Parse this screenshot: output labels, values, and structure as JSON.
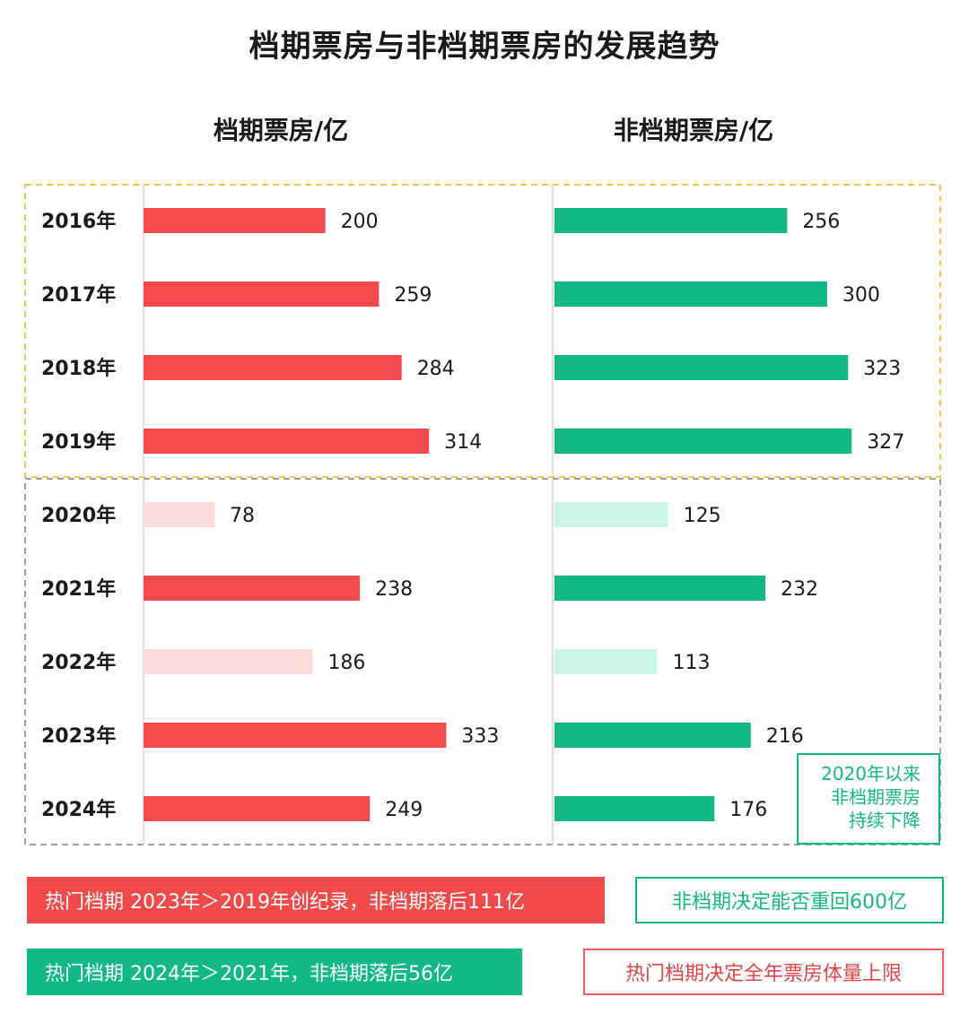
{
  "title": "档期票房与非档期票房的发展趋势",
  "left_header": "档期票房/亿",
  "right_header": "非档期票房/亿",
  "colors": {
    "red": "#f24b4b",
    "red_light": "#fddcdc",
    "green": "#12b886",
    "green_light": "#c9f7ea",
    "yellow_dash": "#f2c744",
    "gray_dash": "#9aa0a8"
  },
  "chart_data": {
    "type": "bar",
    "orientation": "horizontal",
    "categories": [
      "2016年",
      "2017年",
      "2018年",
      "2019年",
      "2020年",
      "2021年",
      "2022年",
      "2023年",
      "2024年"
    ],
    "series": [
      {
        "name": "档期票房/亿",
        "values": [
          200,
          259,
          284,
          314,
          78,
          238,
          186,
          333,
          249
        ],
        "highlight": [
          true,
          true,
          true,
          true,
          false,
          true,
          false,
          true,
          true
        ]
      },
      {
        "name": "非档期票房/亿",
        "values": [
          256,
          300,
          323,
          327,
          125,
          232,
          113,
          216,
          176
        ],
        "highlight": [
          true,
          true,
          true,
          true,
          false,
          true,
          false,
          true,
          true
        ]
      }
    ],
    "xlim": [
      0,
      350
    ],
    "groups": [
      {
        "years": [
          "2016年",
          "2017年",
          "2018年",
          "2019年"
        ],
        "border": "yellow dashed"
      },
      {
        "years": [
          "2020年",
          "2021年",
          "2022年",
          "2023年",
          "2024年"
        ],
        "border": "gray dashed"
      }
    ]
  },
  "note": {
    "line1": "2020年以来",
    "line2": "非档期票房",
    "line3": "持续下降"
  },
  "callouts": {
    "c1": "热门档期 2023年＞2019年创纪录，非档期落后111亿",
    "c2": "非档期决定能否重回600亿",
    "c3": "热门档期 2024年＞2021年，非档期落后56亿",
    "c4": "热门档期决定全年票房体量上限"
  }
}
